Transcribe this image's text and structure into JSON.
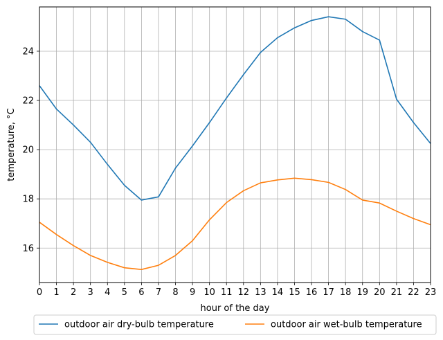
{
  "chart_data": {
    "type": "line",
    "title": "",
    "xlabel": "hour of the day",
    "ylabel": "temperature, °C",
    "x": [
      0,
      1,
      2,
      3,
      4,
      5,
      6,
      7,
      8,
      9,
      10,
      11,
      12,
      13,
      14,
      15,
      16,
      17,
      18,
      19,
      20,
      21,
      22,
      23
    ],
    "xticks": [
      0,
      1,
      2,
      3,
      4,
      5,
      6,
      7,
      8,
      9,
      10,
      11,
      12,
      13,
      14,
      15,
      16,
      17,
      18,
      19,
      20,
      21,
      22,
      23
    ],
    "yticks": [
      16,
      18,
      20,
      22,
      24
    ],
    "xlim": [
      0,
      23
    ],
    "ylim": [
      14.6,
      25.8
    ],
    "grid": true,
    "legend_position": "bottom-center, outside",
    "series": [
      {
        "name": "outdoor air dry-bulb temperature",
        "color": "#1f77b4",
        "values": [
          22.6,
          21.65,
          21.0,
          20.3,
          19.4,
          18.55,
          17.95,
          18.08,
          19.25,
          20.15,
          21.1,
          22.1,
          23.05,
          23.95,
          24.55,
          24.95,
          25.25,
          25.4,
          25.3,
          24.8,
          24.45,
          22.05,
          21.1,
          20.25
        ]
      },
      {
        "name": "outdoor air wet-bulb temperature",
        "color": "#ff7f0e",
        "values": [
          17.05,
          16.55,
          16.1,
          15.7,
          15.42,
          15.2,
          15.13,
          15.3,
          15.7,
          16.3,
          17.15,
          17.85,
          18.33,
          18.65,
          18.77,
          18.84,
          18.78,
          18.67,
          18.38,
          17.95,
          17.83,
          17.5,
          17.2,
          16.95
        ]
      }
    ]
  }
}
